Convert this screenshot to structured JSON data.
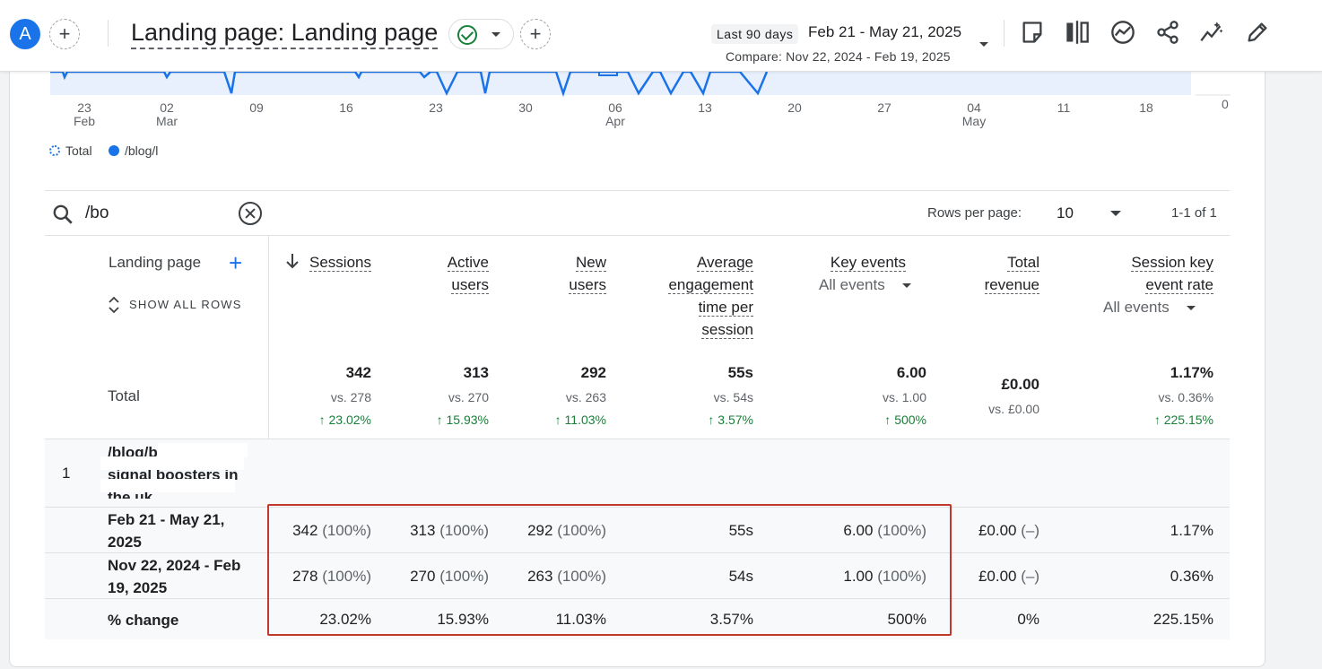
{
  "header": {
    "avatar_letter": "A",
    "title": "Landing page: Landing page",
    "date_chip": "Last 90 days",
    "date_range": "Feb 21 - May 21, 2025",
    "compare": "Compare: Nov 22, 2024 - Feb 19, 2025"
  },
  "chart": {
    "x_ticks": [
      {
        "day": "23",
        "month": "Feb"
      },
      {
        "day": "02",
        "month": "Mar"
      },
      {
        "day": "09",
        "month": ""
      },
      {
        "day": "16",
        "month": ""
      },
      {
        "day": "23",
        "month": ""
      },
      {
        "day": "30",
        "month": ""
      },
      {
        "day": "06",
        "month": "Apr"
      },
      {
        "day": "13",
        "month": ""
      },
      {
        "day": "20",
        "month": ""
      },
      {
        "day": "27",
        "month": ""
      },
      {
        "day": "04",
        "month": "May"
      },
      {
        "day": "11",
        "month": ""
      },
      {
        "day": "18",
        "month": ""
      }
    ],
    "y_zero": "0",
    "legend": [
      {
        "label": "Total",
        "color": "#1a73e8"
      },
      {
        "label": "/blog/l",
        "color": "#1a73e8"
      }
    ]
  },
  "search": {
    "value": "/bo",
    "rows_per_page_label": "Rows per page:",
    "rows_per_page_value": "10",
    "pager": "1-1 of 1"
  },
  "table": {
    "dimension_header": "Landing page",
    "show_all_rows": "SHOW ALL ROWS",
    "total_label": "Total",
    "columns": {
      "sessions": {
        "line1": "Sessions",
        "total": "342",
        "vs": "vs. 278",
        "chg": "23.02%"
      },
      "active": {
        "line1": "Active",
        "line2": "users",
        "total": "313",
        "vs": "vs. 270",
        "chg": "15.93%"
      },
      "newusers": {
        "line1": "New",
        "line2": "users",
        "total": "292",
        "vs": "vs. 263",
        "chg": "11.03%"
      },
      "avg": {
        "line1": "Average",
        "line2": "engagement",
        "line3": "time per",
        "line4": "session",
        "total": "55s",
        "vs": "vs. 54s",
        "chg": "3.57%"
      },
      "keyevents": {
        "line1": "Key events",
        "dropdown": "All events",
        "total": "6.00",
        "vs": "vs. 1.00",
        "chg": "500%"
      },
      "revenue": {
        "line1": "Total",
        "line2": "revenue",
        "total": "£0.00",
        "vs": "vs. £0.00"
      },
      "rate": {
        "line1": "Session key",
        "line2": "event rate",
        "dropdown": "All events",
        "total": "1.17%",
        "vs": "vs. 0.36%",
        "chg": "225.15%"
      }
    },
    "row": {
      "number": "1",
      "landing_page": "/blog/b",
      "landing_page_line2": "signal boosters in",
      "landing_page_line3": "the uk"
    },
    "subrows": [
      {
        "label": "Feb 21 - May 21, 2025",
        "sessions": "342",
        "sessions_pct": "(100%)",
        "active": "313",
        "active_pct": "(100%)",
        "newusers": "292",
        "newusers_pct": "(100%)",
        "avg": "55s",
        "keyevents": "6.00",
        "keyevents_pct": "(100%)",
        "revenue": "£0.00",
        "revenue_pct": "(–)",
        "rate": "1.17%"
      },
      {
        "label": "Nov 22, 2024 - Feb 19, 2025",
        "sessions": "278",
        "sessions_pct": "(100%)",
        "active": "270",
        "active_pct": "(100%)",
        "newusers": "263",
        "newusers_pct": "(100%)",
        "avg": "54s",
        "keyevents": "1.00",
        "keyevents_pct": "(100%)",
        "revenue": "£0.00",
        "revenue_pct": "(–)",
        "rate": "0.36%"
      },
      {
        "label": "% change",
        "sessions": "23.02%",
        "active": "15.93%",
        "newusers": "11.03%",
        "avg": "3.57%",
        "keyevents": "500%",
        "revenue": "0%",
        "rate": "225.15%"
      }
    ]
  },
  "colors": {
    "accent": "#1a73e8",
    "positive": "#188038",
    "highlight": "#c0392b"
  }
}
